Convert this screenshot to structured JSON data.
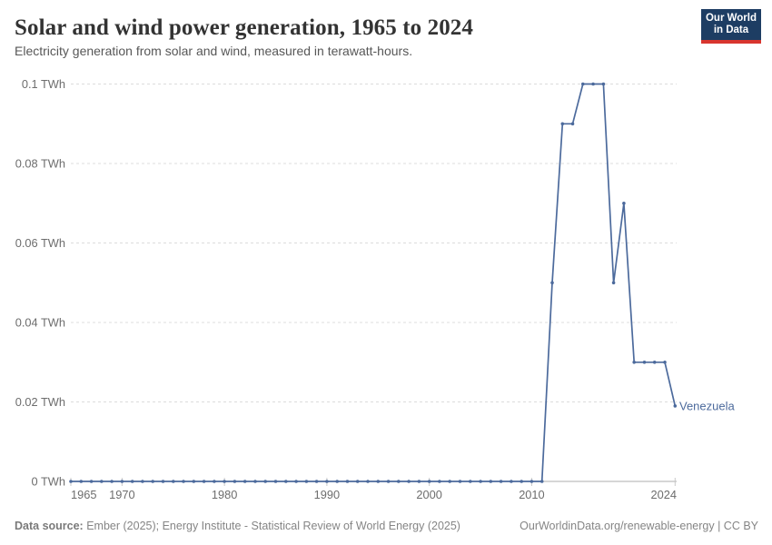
{
  "header": {
    "title": "Solar and wind power generation, 1965 to 2024",
    "subtitle": "Electricity generation from solar and wind, measured in terawatt-hours.",
    "logo": {
      "line1": "Our World",
      "line2": "in Data"
    }
  },
  "chart_data": {
    "type": "line",
    "title": "Solar and wind power generation, 1965 to 2024",
    "xlabel": "",
    "ylabel": "",
    "unit": "TWh",
    "xlim": [
      1965,
      2024
    ],
    "ylim": [
      0,
      0.1
    ],
    "xticks": [
      1965,
      1970,
      1980,
      1990,
      2000,
      2010,
      2024
    ],
    "yticks": [
      0,
      0.02,
      0.04,
      0.06,
      0.08,
      0.1
    ],
    "ytick_labels": [
      "0 TWh",
      "0.02 TWh",
      "0.04 TWh",
      "0.06 TWh",
      "0.08 TWh",
      "0.1 TWh"
    ],
    "grid": "horizontal-dashed",
    "legend_position": "end-of-line-label",
    "series": [
      {
        "name": "Venezuela",
        "color": "#4c6a9c",
        "x": [
          1965,
          1966,
          1967,
          1968,
          1969,
          1970,
          1971,
          1972,
          1973,
          1974,
          1975,
          1976,
          1977,
          1978,
          1979,
          1980,
          1981,
          1982,
          1983,
          1984,
          1985,
          1986,
          1987,
          1988,
          1989,
          1990,
          1991,
          1992,
          1993,
          1994,
          1995,
          1996,
          1997,
          1998,
          1999,
          2000,
          2001,
          2002,
          2003,
          2004,
          2005,
          2006,
          2007,
          2008,
          2009,
          2010,
          2011,
          2012,
          2013,
          2014,
          2015,
          2016,
          2017,
          2018,
          2019,
          2020,
          2021,
          2022,
          2023,
          2024
        ],
        "values": [
          0,
          0,
          0,
          0,
          0,
          0,
          0,
          0,
          0,
          0,
          0,
          0,
          0,
          0,
          0,
          0,
          0,
          0,
          0,
          0,
          0,
          0,
          0,
          0,
          0,
          0,
          0,
          0,
          0,
          0,
          0,
          0,
          0,
          0,
          0,
          0,
          0,
          0,
          0,
          0,
          0,
          0,
          0,
          0,
          0,
          0,
          0,
          0.05,
          0.09,
          0.09,
          0.1,
          0.1,
          0.1,
          0.05,
          0.07,
          0.03,
          0.03,
          0.03,
          0.03,
          0.019
        ]
      }
    ]
  },
  "footer": {
    "source_label": "Data source:",
    "source_text": "Ember (2025); Energy Institute - Statistical Review of World Energy (2025)",
    "attribution": "OurWorldinData.org/renewable-energy | CC BY"
  },
  "colors": {
    "line": "#4c6a9c",
    "gridline": "#dcdcdc",
    "axis_line": "#adadad",
    "tick_mark": "#c9c9c9",
    "tick_text": "#6d6d6d",
    "logo_bg": "#1d3d63",
    "logo_red": "#d8352e"
  }
}
